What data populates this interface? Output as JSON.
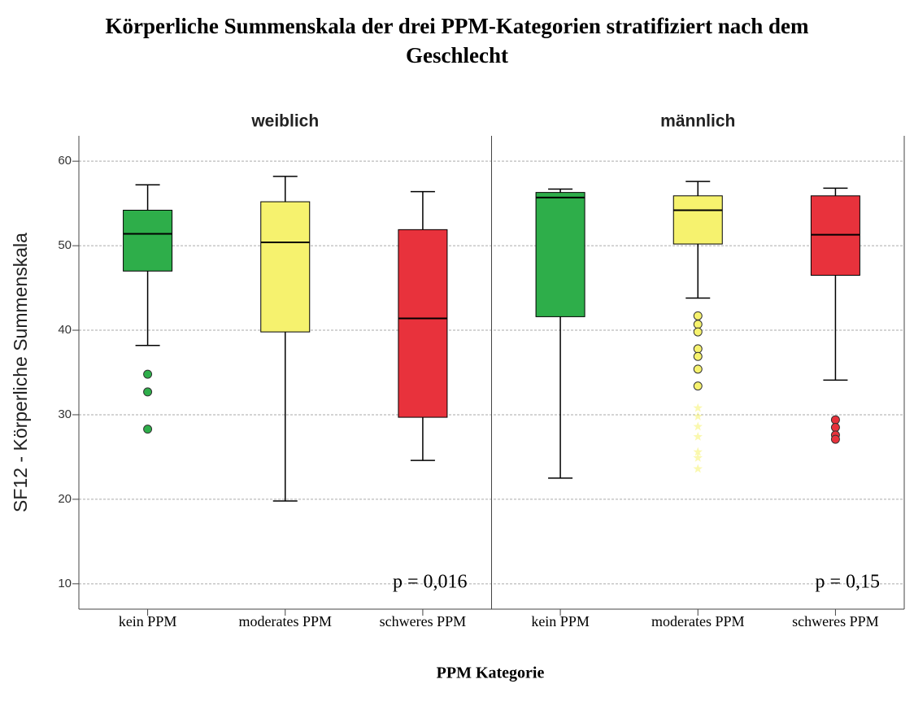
{
  "chart_data": {
    "type": "box",
    "title": "Körperliche Summenskala der drei PPM-Kategorien stratifiziert nach dem Geschlecht",
    "x_label": "PPM Kategorie",
    "y_label": "SF12 - Körperliche Summenskala",
    "ylim": [
      7,
      63
    ],
    "yticks": [
      10,
      20,
      30,
      40,
      50,
      60
    ],
    "grid": true,
    "categories": [
      "kein PPM",
      "moderates PPM",
      "schweres PPM"
    ],
    "colors": [
      "#2eae4a",
      "#f6f26e",
      "#e8323c"
    ],
    "panels": [
      {
        "name": "weiblich",
        "annotation": "p = 0,016",
        "boxes": [
          {
            "min": 38.2,
            "q1": 47,
            "median": 51.4,
            "q3": 54.2,
            "max": 57.2,
            "outliers": [
              34.8,
              32.7,
              28.3
            ],
            "extremes": []
          },
          {
            "min": 19.8,
            "q1": 39.8,
            "median": 50.4,
            "q3": 55.2,
            "max": 58.2,
            "outliers": [],
            "extremes": []
          },
          {
            "min": 24.6,
            "q1": 29.7,
            "median": 41.4,
            "q3": 51.9,
            "max": 56.4,
            "outliers": [],
            "extremes": []
          }
        ]
      },
      {
        "name": "männlich",
        "annotation": "p = 0,15",
        "boxes": [
          {
            "min": 22.5,
            "q1": 41.6,
            "median": 55.7,
            "q3": 56.3,
            "max": 56.7,
            "outliers": [],
            "extremes": []
          },
          {
            "min": 43.8,
            "q1": 50.2,
            "median": 54.2,
            "q3": 55.9,
            "max": 57.6,
            "outliers": [
              41.7,
              40.7,
              39.8,
              37.8,
              36.9,
              35.4,
              33.4
            ],
            "extremes": [
              30.8,
              29.8,
              28.6,
              27.4,
              25.6,
              24.9,
              23.6
            ]
          },
          {
            "min": 34.1,
            "q1": 46.5,
            "median": 51.3,
            "q3": 55.9,
            "max": 56.8,
            "outliers": [
              29.4,
              28.5,
              27.6,
              27.1
            ],
            "extremes": []
          }
        ]
      }
    ]
  }
}
